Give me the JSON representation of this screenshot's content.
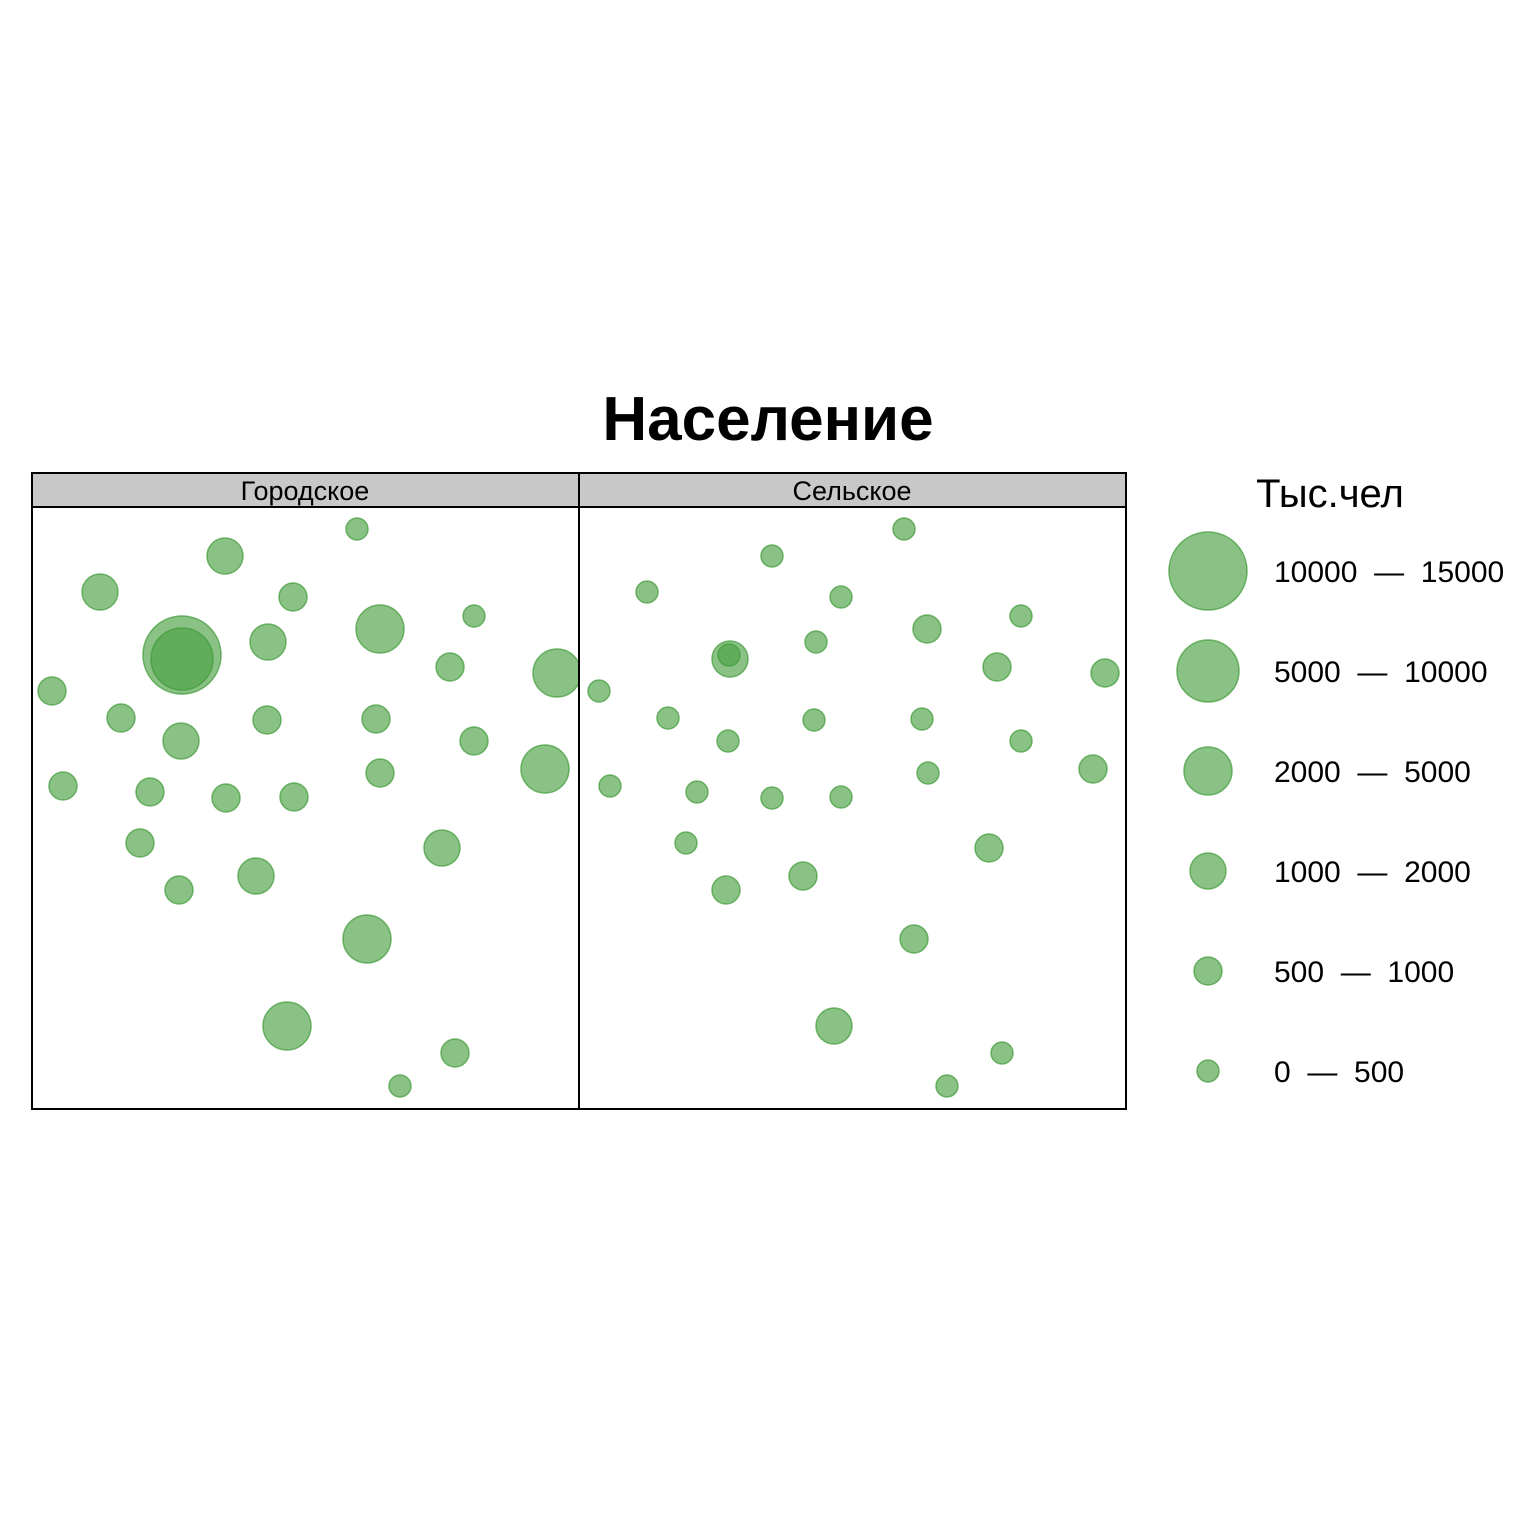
{
  "title": "Население",
  "legend": {
    "title": "Тыс.чел",
    "items": [
      {
        "label": "10000  —  15000",
        "min": 10000,
        "max": 15000
      },
      {
        "label": "5000  —  10000",
        "min": 5000,
        "max": 10000
      },
      {
        "label": "2000  —  5000",
        "min": 2000,
        "max": 5000
      },
      {
        "label": "1000  —  2000",
        "min": 1000,
        "max": 2000
      },
      {
        "label": "500  —  1000",
        "min": 500,
        "max": 1000
      },
      {
        "label": "0  —  500",
        "min": 0,
        "max": 500
      }
    ]
  },
  "colors": {
    "bubble_fill": "#4CA145",
    "bubble_stroke": "#3E9A37",
    "strip_fill": "#C8C8C8",
    "frame": "#000000"
  },
  "panels": [
    {
      "label": "Городское"
    },
    {
      "label": "Сельское"
    }
  ]
}
